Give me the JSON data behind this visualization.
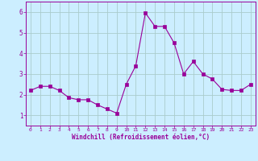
{
  "x": [
    0,
    1,
    2,
    3,
    4,
    5,
    6,
    7,
    8,
    9,
    10,
    11,
    12,
    13,
    14,
    15,
    16,
    17,
    18,
    19,
    20,
    21,
    22,
    23
  ],
  "y": [
    2.2,
    2.4,
    2.4,
    2.2,
    1.85,
    1.75,
    1.75,
    1.5,
    1.3,
    1.1,
    2.5,
    3.4,
    5.95,
    5.3,
    5.3,
    4.5,
    3.0,
    3.6,
    3.0,
    2.75,
    2.25,
    2.2,
    2.2,
    2.5
  ],
  "line_color": "#990099",
  "marker": "s",
  "marker_size": 2.5,
  "bg_color": "#cceeff",
  "grid_color": "#aacccc",
  "xlabel": "Windchill (Refroidissement éolien,°C)",
  "xlabel_color": "#990099",
  "tick_color": "#990099",
  "ylim": [
    0.5,
    6.5
  ],
  "xlim": [
    -0.5,
    23.5
  ],
  "yticks": [
    1,
    2,
    3,
    4,
    5,
    6
  ],
  "xticks": [
    0,
    1,
    2,
    3,
    4,
    5,
    6,
    7,
    8,
    9,
    10,
    11,
    12,
    13,
    14,
    15,
    16,
    17,
    18,
    19,
    20,
    21,
    22,
    23
  ]
}
